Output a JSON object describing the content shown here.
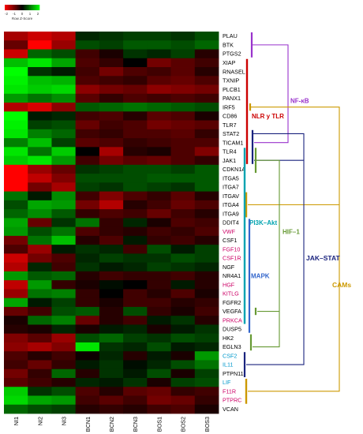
{
  "chart_data": {
    "type": "heatmap",
    "title": "",
    "color_key": {
      "label": "Row Z-Score",
      "ticks": [
        "-2",
        "-1",
        "0",
        "1",
        "2"
      ],
      "range": [
        -2,
        2
      ],
      "low_color": "#ff0000",
      "mid_color": "#000000",
      "high_color": "#00ff00"
    },
    "columns": [
      "NI1",
      "NI2",
      "NI3",
      "BCN1",
      "BCN2",
      "BCN3",
      "BOS1",
      "BOS2",
      "BOS3"
    ],
    "rows": [
      {
        "gene": "PLAU",
        "label_color": "#000000",
        "values": [
          -1.3,
          -1.6,
          -1.4,
          0.3,
          0.4,
          0.5,
          0.5,
          0.4,
          0.6
        ]
      },
      {
        "gene": "BTK",
        "label_color": "#000000",
        "values": [
          -0.8,
          -2.0,
          -1.2,
          0.6,
          0.5,
          0.7,
          0.7,
          0.6,
          0.8
        ]
      },
      {
        "gene": "PTGS2",
        "label_color": "#000000",
        "values": [
          -1.6,
          0.8,
          0.6,
          -0.5,
          -0.2,
          0.4,
          0.3,
          0.5,
          -0.3
        ]
      },
      {
        "gene": "XIAP",
        "label_color": "#000000",
        "values": [
          1.5,
          1.8,
          1.3,
          -0.6,
          -0.4,
          0.0,
          -0.9,
          -0.7,
          -0.5
        ]
      },
      {
        "gene": "RNASEL",
        "label_color": "#000000",
        "values": [
          2.0,
          0.4,
          0.2,
          -0.5,
          -0.9,
          -0.6,
          -0.5,
          -0.7,
          -0.3
        ]
      },
      {
        "gene": "TXNIP",
        "label_color": "#000000",
        "values": [
          1.9,
          1.5,
          1.4,
          -0.6,
          -0.5,
          -0.4,
          -0.7,
          -0.8,
          -0.6
        ]
      },
      {
        "gene": "PLCB1",
        "label_color": "#000000",
        "values": [
          1.8,
          1.6,
          1.7,
          -1.1,
          -0.9,
          -0.8,
          -1.1,
          -1.0,
          -0.9
        ]
      },
      {
        "gene": "PANX1",
        "label_color": "#000000",
        "values": [
          1.2,
          0.9,
          1.1,
          -0.7,
          -0.4,
          -0.6,
          -0.5,
          -0.6,
          -0.5
        ]
      },
      {
        "gene": "IRF5",
        "label_color": "#000000",
        "values": [
          -1.4,
          -1.7,
          -1.1,
          0.7,
          0.8,
          0.9,
          0.8,
          0.7,
          0.6
        ]
      },
      {
        "gene": "CD86",
        "label_color": "#000000",
        "values": [
          2.2,
          0.2,
          0.3,
          -0.5,
          -0.6,
          -0.3,
          -0.7,
          -0.6,
          -0.2
        ]
      },
      {
        "gene": "TLR7",
        "label_color": "#000000",
        "values": [
          1.9,
          0.5,
          0.6,
          -0.8,
          -0.5,
          -0.6,
          -0.9,
          -0.8,
          -0.7
        ]
      },
      {
        "gene": "STAT2",
        "label_color": "#000000",
        "values": [
          1.8,
          1.0,
          0.8,
          -0.5,
          -0.4,
          -0.6,
          -0.6,
          -0.7,
          -0.4
        ]
      },
      {
        "gene": "TICAM1",
        "label_color": "#000000",
        "values": [
          1.0,
          1.5,
          0.5,
          -0.7,
          -0.6,
          -0.4,
          -0.5,
          -0.6,
          -0.6
        ]
      },
      {
        "gene": "TLR4",
        "label_color": "#000000",
        "values": [
          1.8,
          0.9,
          1.6,
          0.0,
          -1.3,
          -0.3,
          -0.2,
          -0.6,
          -1.0
        ]
      },
      {
        "gene": "JAK1",
        "label_color": "#000000",
        "values": [
          1.6,
          1.8,
          1.2,
          -0.5,
          -0.9,
          -0.7,
          -0.8,
          -0.6,
          -0.4
        ]
      },
      {
        "gene": "CDKN1A",
        "label_color": "#000000",
        "values": [
          -2.0,
          -1.2,
          -0.8,
          0.4,
          0.5,
          0.6,
          0.6,
          0.5,
          0.7
        ]
      },
      {
        "gene": "ITGA5",
        "label_color": "#000000",
        "values": [
          -2.1,
          -1.5,
          -1.0,
          0.6,
          0.6,
          0.6,
          0.7,
          0.7,
          0.7
        ]
      },
      {
        "gene": "ITGA7",
        "label_color": "#000000",
        "values": [
          -2.0,
          -0.9,
          -1.3,
          0.5,
          0.4,
          0.6,
          0.5,
          0.4,
          0.7
        ]
      },
      {
        "gene": "ITGAV",
        "label_color": "#000000",
        "values": [
          0.9,
          0.2,
          1.1,
          -0.5,
          -1.0,
          -0.6,
          -0.4,
          -0.7,
          -0.3
        ]
      },
      {
        "gene": "ITGA4",
        "label_color": "#000000",
        "values": [
          0.6,
          1.3,
          1.2,
          -0.9,
          -1.4,
          -0.3,
          -0.5,
          -0.8,
          -0.6
        ]
      },
      {
        "gene": "ITGA9",
        "label_color": "#000000",
        "values": [
          0.8,
          1.1,
          0.7,
          -0.4,
          -0.6,
          -0.5,
          -0.8,
          -0.5,
          -0.3
        ]
      },
      {
        "gene": "DDIT4",
        "label_color": "#000000",
        "values": [
          1.3,
          -0.8,
          0.4,
          0.9,
          -0.4,
          0.3,
          -0.2,
          -0.6,
          -0.5
        ]
      },
      {
        "gene": "VWF",
        "label_color": "#cc0066",
        "values": [
          1.2,
          0.6,
          0.9,
          -0.6,
          -0.4,
          -0.3,
          -0.5,
          -0.4,
          -0.6
        ]
      },
      {
        "gene": "CSF1",
        "label_color": "#000000",
        "values": [
          -0.9,
          0.9,
          1.5,
          -0.3,
          -0.6,
          0.2,
          -0.4,
          -0.5,
          -0.3
        ]
      },
      {
        "gene": "FGF10",
        "label_color": "#cc0066",
        "values": [
          -0.6,
          -1.2,
          0.2,
          0.4,
          0.3,
          -0.5,
          0.6,
          0.2,
          0.5
        ]
      },
      {
        "gene": "CSF1R",
        "label_color": "#cc0066",
        "values": [
          -1.6,
          -0.9,
          -0.6,
          0.3,
          0.5,
          0.4,
          0.4,
          0.6,
          0.5
        ]
      },
      {
        "gene": "NGF",
        "label_color": "#000000",
        "values": [
          -1.4,
          0.3,
          -0.5,
          0.4,
          0.2,
          0.3,
          0.5,
          0.4,
          0.3
        ]
      },
      {
        "gene": "NR4A1",
        "label_color": "#000000",
        "values": [
          1.2,
          0.7,
          0.8,
          -0.3,
          -0.5,
          -0.4,
          -0.4,
          -0.5,
          -0.3
        ]
      },
      {
        "gene": "HGF",
        "label_color": "#cc0066",
        "values": [
          -1.5,
          1.2,
          -0.4,
          -0.2,
          0.1,
          0.0,
          -0.4,
          0.2,
          -0.3
        ]
      },
      {
        "gene": "KITLG",
        "label_color": "#cc0066",
        "values": [
          -1.2,
          0.9,
          1.0,
          -0.4,
          0.0,
          -0.5,
          -0.3,
          -0.6,
          -0.2
        ]
      },
      {
        "gene": "FGFR2",
        "label_color": "#000000",
        "values": [
          1.3,
          0.2,
          0.5,
          -0.4,
          -0.2,
          -0.5,
          -0.5,
          -0.3,
          -0.4
        ]
      },
      {
        "gene": "VEGFA",
        "label_color": "#000000",
        "values": [
          -0.8,
          -0.5,
          0.6,
          0.7,
          -0.3,
          0.6,
          -0.4,
          -0.2,
          -0.5
        ]
      },
      {
        "gene": "PRKCA",
        "label_color": "#cc0066",
        "values": [
          -0.2,
          0.8,
          1.0,
          -0.8,
          -0.3,
          -0.5,
          0.2,
          0.4,
          -0.3
        ]
      },
      {
        "gene": "DUSP5",
        "label_color": "#000000",
        "values": [
          -0.3,
          -0.2,
          0.3,
          -0.2,
          0.2,
          0.3,
          -0.2,
          0.2,
          0.4
        ]
      },
      {
        "gene": "HK2",
        "label_color": "#000000",
        "values": [
          -1.0,
          -0.7,
          -1.2,
          0.6,
          0.8,
          0.5,
          0.4,
          0.6,
          0.5
        ]
      },
      {
        "gene": "EGLN3",
        "label_color": "#000000",
        "values": [
          -1.1,
          -1.3,
          -1.0,
          1.8,
          0.4,
          0.3,
          0.6,
          0.2,
          0.3
        ]
      },
      {
        "gene": "CSF2",
        "label_color": "#0099cc",
        "values": [
          -0.6,
          -0.3,
          -0.5,
          -0.1,
          0.3,
          -0.3,
          0.2,
          -0.2,
          1.2
        ]
      },
      {
        "gene": "IL11",
        "label_color": "#0099cc",
        "values": [
          -0.5,
          -0.8,
          -0.4,
          0.2,
          0.4,
          0.1,
          0.3,
          0.6,
          0.9
        ]
      },
      {
        "gene": "PTPN11",
        "label_color": "#000000",
        "values": [
          -0.9,
          -0.4,
          0.8,
          -0.3,
          0.4,
          0.2,
          0.6,
          -0.2,
          0.5
        ]
      },
      {
        "gene": "LIF",
        "label_color": "#0099cc",
        "values": [
          -0.7,
          -0.5,
          -0.3,
          0.3,
          0.2,
          0.4,
          -0.2,
          0.5,
          0.6
        ]
      },
      {
        "gene": "F11R",
        "label_color": "#cc0066",
        "values": [
          1.6,
          0.4,
          0.6,
          -0.6,
          -0.3,
          -0.7,
          -0.8,
          -0.4,
          -0.5
        ]
      },
      {
        "gene": "PTPRC",
        "label_color": "#cc0066",
        "values": [
          1.7,
          1.3,
          1.2,
          -0.5,
          -0.7,
          -0.5,
          -0.9,
          -0.8,
          -0.4
        ]
      },
      {
        "gene": "VCAN",
        "label_color": "#000000",
        "values": [
          0.8,
          0.6,
          0.5,
          -0.3,
          -0.4,
          -0.3,
          -0.5,
          -0.6,
          -0.2
        ]
      }
    ],
    "pathways": [
      {
        "name": "NF-κB",
        "color": "#9933cc"
      },
      {
        "name": "NLR y TLR",
        "color": "#cc0000"
      },
      {
        "name": "PI3K–Akt",
        "color": "#00a3b0"
      },
      {
        "name": "HIF–1",
        "color": "#669933"
      },
      {
        "name": "JAK–STAT",
        "color": "#1a237e"
      },
      {
        "name": "MAPK",
        "color": "#3366cc"
      },
      {
        "name": "CAMs",
        "color": "#cc9900"
      }
    ]
  }
}
